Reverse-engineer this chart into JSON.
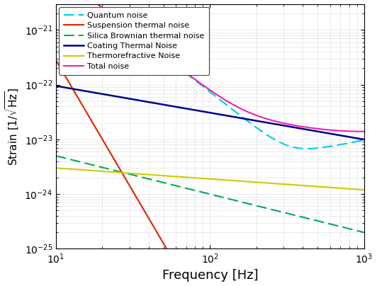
{
  "xlabel": "Frequency [Hz]",
  "ylabel": "Strain $[1/\\sqrt{\\mathrm{Hz}}]$",
  "xlim": [
    10,
    1000
  ],
  "ylim": [
    1e-25,
    3e-21
  ],
  "legend_loc": "upper left",
  "background_color": "#ffffff",
  "grid_color": "#999999"
}
